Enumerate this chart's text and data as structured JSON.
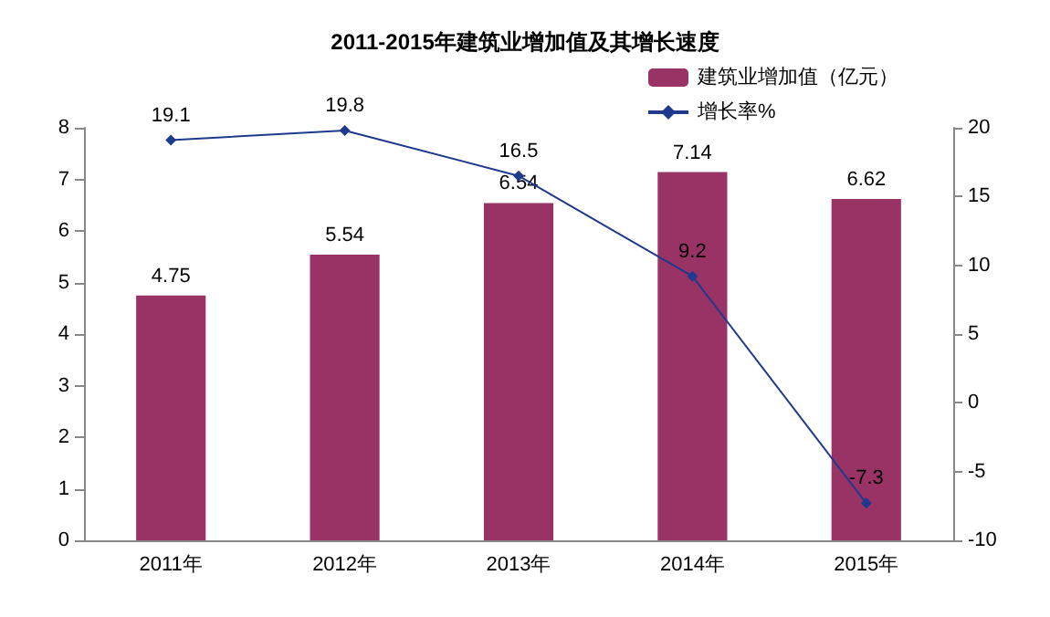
{
  "chart_data": {
    "type": "bar",
    "title": "2011-2015年建筑业增加值及其增长速度",
    "categories": [
      "2011年",
      "2012年",
      "2013年",
      "2014年",
      "2015年"
    ],
    "series": [
      {
        "name": "建筑业增加值（亿元）",
        "color": "#993366",
        "values": [
          4.75,
          5.54,
          6.54,
          7.14,
          6.62
        ]
      },
      {
        "name": "增长率%",
        "type": "line",
        "axis": "y2",
        "color": "#1f3a8c",
        "values": [
          19.1,
          19.8,
          16.5,
          9.2,
          -7.3
        ]
      }
    ],
    "ylim": [
      0,
      8
    ],
    "yticks": [
      0,
      1,
      2,
      3,
      4,
      5,
      6,
      7,
      8
    ],
    "y2lim": [
      -10,
      20
    ],
    "y2ticks": [
      -10,
      -5,
      0,
      5,
      10,
      15,
      20
    ],
    "data_labels": true,
    "legend": "top right",
    "marker": "diamond",
    "grid": false
  }
}
